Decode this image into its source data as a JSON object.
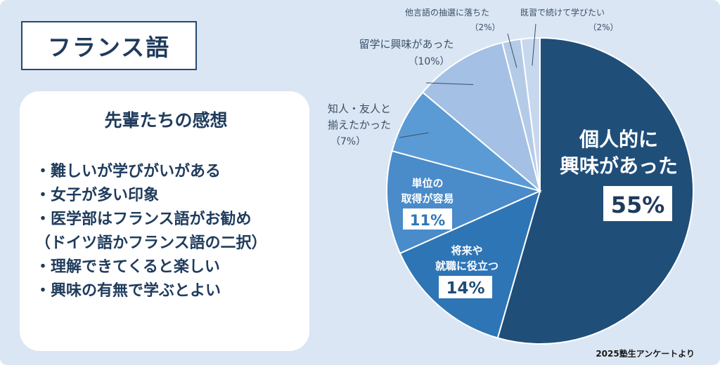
{
  "header": {
    "title": "フランス語"
  },
  "panel": {
    "title": "先輩たちの感想",
    "items": [
      "・難しいが学びがいがある",
      "・女子が多い印象",
      "・医学部はフランス語がお勧め",
      "（ドイツ語かフランス語の二択）",
      "・理解できてくると楽しい",
      "・興味の有無で学ぶとよい"
    ]
  },
  "source": "2025塾生アンケートより",
  "chart_data": {
    "type": "pie",
    "start": "12 o'clock",
    "direction": "clockwise",
    "slices": [
      {
        "lines": [
          "個人的に",
          "興味があった"
        ],
        "value": 55,
        "label": "55%",
        "color": "#1f4e79"
      },
      {
        "lines": [
          "将来や",
          "就職に役立つ"
        ],
        "value": 14,
        "label": "14%",
        "color": "#2e75b6"
      },
      {
        "lines": [
          "単位の",
          "取得が容易"
        ],
        "value": 11,
        "label": "11%",
        "color": "#4a8bc9"
      },
      {
        "lines": [
          "知人・友人と",
          "揃えたかった"
        ],
        "value": 7,
        "label": "（7%）",
        "color": "#5b9bd5"
      },
      {
        "lines": [
          "留学に興味があった"
        ],
        "value": 10,
        "label": "（10%）",
        "color": "#a4c0e4"
      },
      {
        "lines": [
          "他言語の抽選に落ちた"
        ],
        "value": 2,
        "label": "（2%）",
        "color": "#b4cbe8"
      },
      {
        "lines": [
          "既習で続けて学びたい"
        ],
        "value": 2,
        "label": "（2%）",
        "color": "#c7d7ee"
      }
    ]
  }
}
